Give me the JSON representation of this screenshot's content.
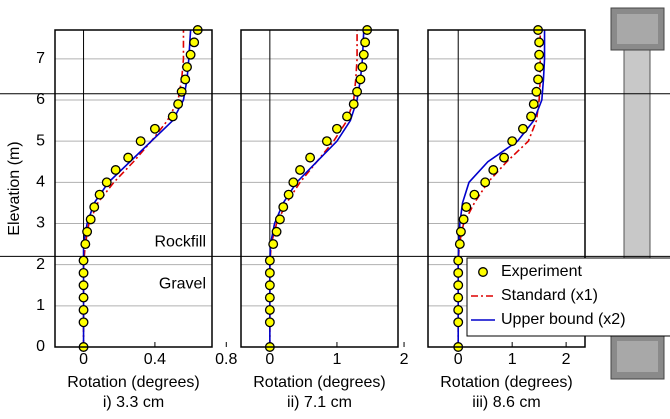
{
  "chart_data": [
    {
      "type": "line",
      "title": "i) 3.3 cm",
      "x_label": "Rotation (degrees)",
      "y_label": "Elevation (m)",
      "annotations": [
        "Rockfill",
        "Gravel"
      ],
      "hlines": [
        2.2,
        6.15
      ],
      "xlim": [
        -0.16,
        0.72
      ],
      "xticks": [
        0,
        0.4,
        0.8
      ],
      "ylim": [
        0,
        7.7
      ],
      "yticks": [
        0,
        1,
        2,
        3,
        4,
        5,
        6,
        7
      ],
      "grid": true,
      "series": [
        {
          "color": "#dd0000",
          "style": "dashdot",
          "x": [
            0,
            0,
            0,
            0.01,
            0.03,
            0.08,
            0.17,
            0.28,
            0.38,
            0.47,
            0.53,
            0.55,
            0.56,
            0.56
          ],
          "y": [
            0,
            1,
            2,
            2.5,
            3,
            3.5,
            4,
            4.5,
            5,
            5.5,
            6,
            6.5,
            7,
            7.7
          ]
        },
        {
          "color": "#0000cc",
          "style": "solid",
          "x": [
            0,
            0,
            0,
            0,
            0.02,
            0.06,
            0.14,
            0.26,
            0.38,
            0.5,
            0.56,
            0.58,
            0.59,
            0.6
          ],
          "y": [
            0,
            1,
            2,
            2.5,
            3,
            3.5,
            4,
            4.5,
            5,
            5.5,
            6,
            6.5,
            7,
            7.7
          ]
        },
        {
          "color": "#ffff00",
          "style": "marker",
          "x": [
            0,
            0,
            0,
            0,
            0,
            0,
            0,
            0.01,
            0.02,
            0.04,
            0.06,
            0.09,
            0.13,
            0.18,
            0.25,
            0.32,
            0.4,
            0.5,
            0.53,
            0.55,
            0.57,
            0.58,
            0.6,
            0.62,
            0.64
          ],
          "y": [
            0,
            0.6,
            0.9,
            1.2,
            1.5,
            1.8,
            2.1,
            2.5,
            2.8,
            3.1,
            3.4,
            3.7,
            4.0,
            4.3,
            4.6,
            5.0,
            5.3,
            5.6,
            5.9,
            6.2,
            6.5,
            6.8,
            7.1,
            7.4,
            7.7
          ]
        }
      ]
    },
    {
      "type": "line",
      "title": "ii) 7.1 cm",
      "x_label": "Rotation (degrees)",
      "xlim": [
        -0.43,
        1.91
      ],
      "xticks": [
        0,
        1,
        2
      ],
      "ylim": [
        0,
        7.7
      ],
      "yticks": [
        0,
        1,
        2,
        3,
        4,
        5,
        6,
        7
      ],
      "grid": true,
      "series": [
        {
          "color": "#dd0000",
          "style": "dashdot",
          "x": [
            0,
            0,
            0,
            0.02,
            0.1,
            0.25,
            0.45,
            0.7,
            0.95,
            1.15,
            1.25,
            1.28,
            1.3,
            1.3
          ],
          "y": [
            0,
            1,
            2,
            2.5,
            3,
            3.5,
            4,
            4.5,
            5,
            5.5,
            6,
            6.5,
            7,
            7.7
          ]
        },
        {
          "color": "#0000cc",
          "style": "solid",
          "x": [
            0,
            0,
            0,
            0.01,
            0.07,
            0.2,
            0.4,
            0.7,
            1.0,
            1.2,
            1.3,
            1.35,
            1.38,
            1.4
          ],
          "y": [
            0,
            1,
            2,
            2.5,
            3,
            3.5,
            4,
            4.5,
            5,
            5.5,
            6,
            6.5,
            7,
            7.7
          ]
        },
        {
          "color": "#ffff00",
          "style": "marker",
          "x": [
            0,
            0,
            0,
            0,
            0,
            0,
            0,
            0.05,
            0.1,
            0.15,
            0.2,
            0.28,
            0.35,
            0.45,
            0.6,
            0.85,
            1.0,
            1.15,
            1.25,
            1.3,
            1.35,
            1.38,
            1.4,
            1.42,
            1.45
          ],
          "y": [
            0,
            0.6,
            0.9,
            1.2,
            1.5,
            1.8,
            2.1,
            2.5,
            2.8,
            3.1,
            3.4,
            3.7,
            4.0,
            4.3,
            4.6,
            5.0,
            5.3,
            5.6,
            5.9,
            6.2,
            6.5,
            6.8,
            7.1,
            7.4,
            7.7
          ]
        }
      ]
    },
    {
      "type": "line",
      "title": "iii) 8.6 cm",
      "x_label": "Rotation (degrees)",
      "legend": "lower right",
      "xlim": [
        -0.56,
        2.35
      ],
      "xticks": [
        0,
        1,
        2
      ],
      "ylim": [
        0,
        7.7
      ],
      "yticks": [
        0,
        1,
        2,
        3,
        4,
        5,
        6,
        7
      ],
      "grid": true,
      "series": [
        {
          "name": "Experiment",
          "color": "#ffff00",
          "style": "marker",
          "x": [
            0,
            0,
            0,
            0,
            0,
            0,
            0,
            0.03,
            0.05,
            0.1,
            0.15,
            0.3,
            0.5,
            0.65,
            0.85,
            1.0,
            1.2,
            1.35,
            1.4,
            1.45,
            1.48,
            1.5,
            1.5,
            1.5,
            1.48
          ],
          "y": [
            0,
            0.6,
            0.9,
            1.2,
            1.5,
            1.8,
            2.1,
            2.5,
            2.8,
            3.1,
            3.4,
            3.7,
            4.0,
            4.3,
            4.6,
            5.0,
            5.3,
            5.6,
            5.9,
            6.2,
            6.5,
            6.8,
            7.1,
            7.4,
            7.7
          ]
        },
        {
          "name": "Standard (x1)",
          "color": "#dd0000",
          "style": "dashdot",
          "x": [
            0,
            0,
            0,
            0.02,
            0.1,
            0.3,
            0.55,
            0.9,
            1.3,
            1.45,
            1.5,
            1.52,
            1.52,
            1.52
          ],
          "y": [
            0,
            1,
            2,
            2.5,
            3,
            3.5,
            4,
            4.5,
            5,
            5.5,
            6,
            6.5,
            7,
            7.7
          ]
        },
        {
          "name": "Upper bound (x2)",
          "color": "#0000cc",
          "style": "solid",
          "x": [
            0,
            0,
            0,
            0.01,
            0.03,
            0.08,
            0.2,
            0.55,
            1.1,
            1.4,
            1.55,
            1.58,
            1.6,
            1.6
          ],
          "y": [
            0,
            1,
            2,
            2.5,
            3,
            3.5,
            4,
            4.5,
            5,
            5.5,
            6,
            6.5,
            7,
            7.7
          ]
        }
      ]
    }
  ]
}
